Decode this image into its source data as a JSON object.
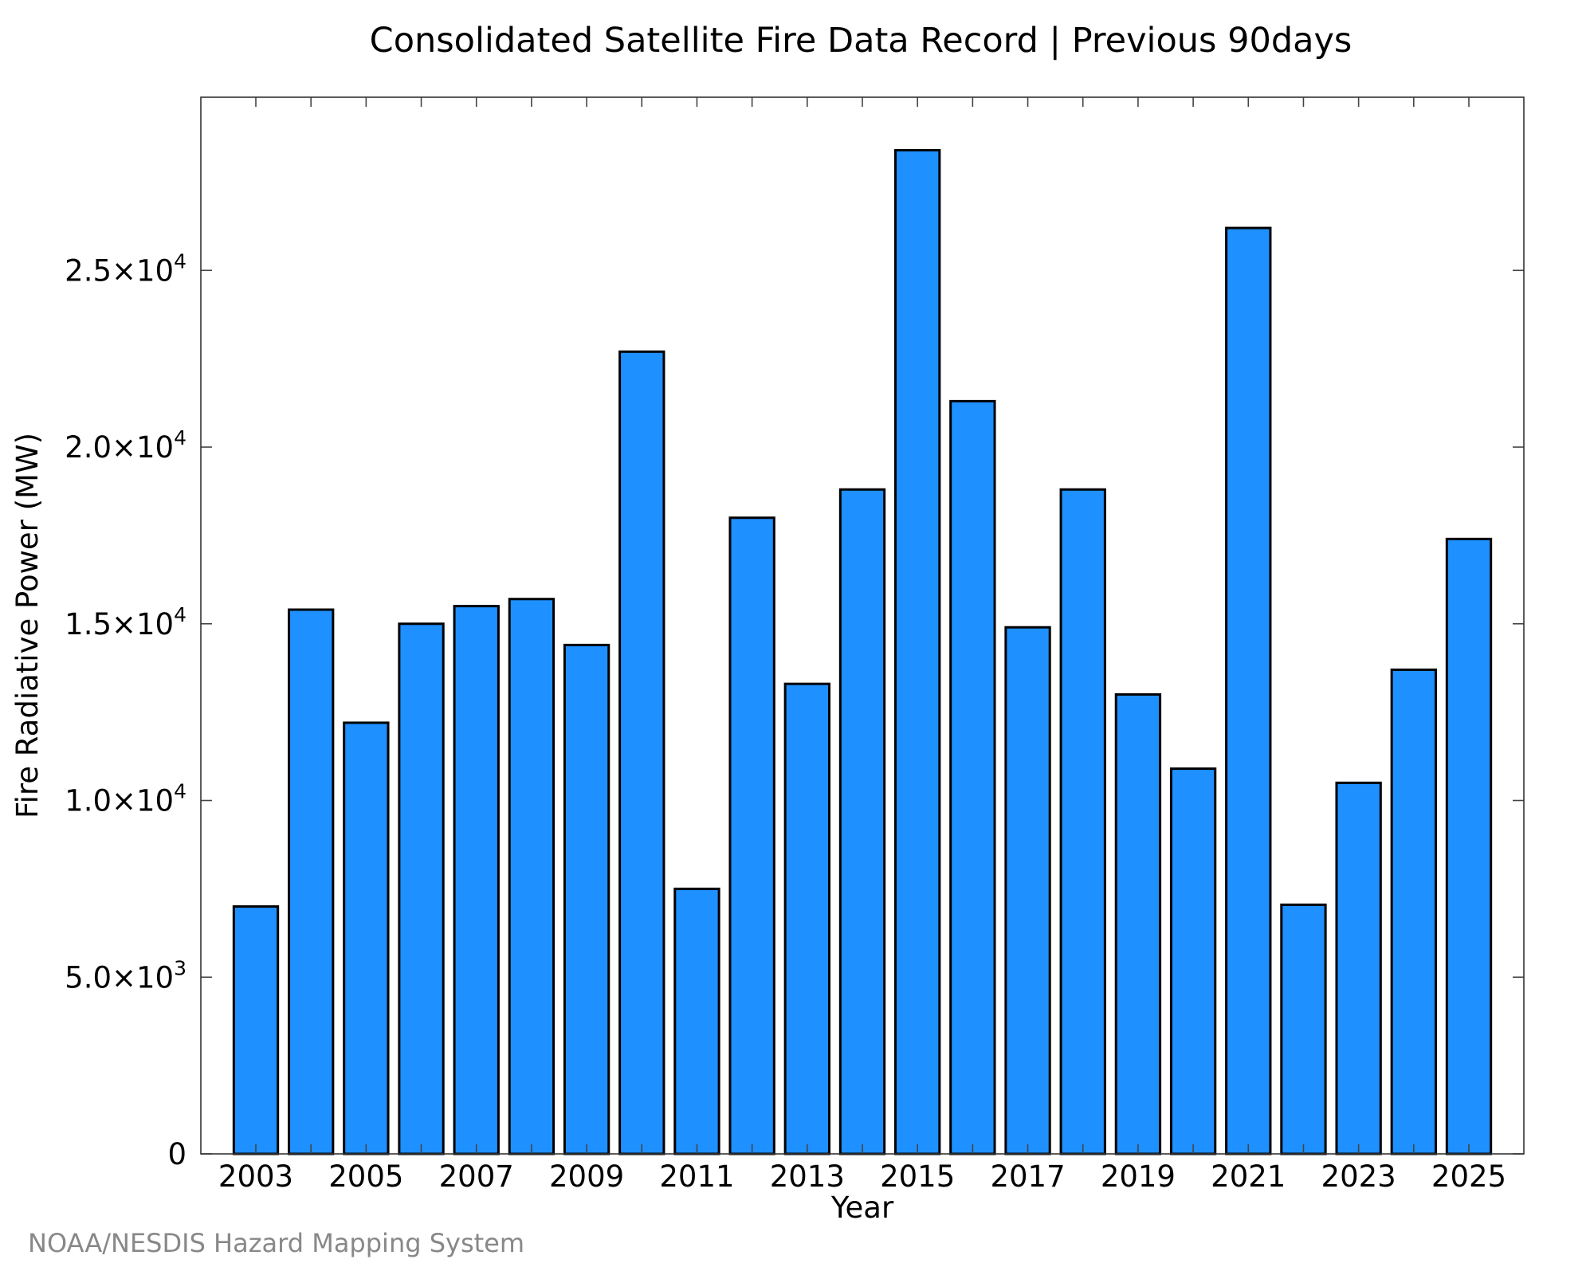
{
  "chart_data": {
    "type": "bar",
    "title": "Consolidated Satellite Fire Data Record | Previous 90days",
    "xlabel": "Year",
    "ylabel": "Fire Radiative Power (MW)",
    "categories": [
      "2003",
      "2004",
      "2005",
      "2006",
      "2007",
      "2008",
      "2009",
      "2010",
      "2011",
      "2012",
      "2013",
      "2014",
      "2015",
      "2016",
      "2017",
      "2018",
      "2019",
      "2020",
      "2021",
      "2022",
      "2023",
      "2024",
      "2025"
    ],
    "values": [
      7000,
      15400,
      12200,
      15000,
      15500,
      15700,
      14400,
      22700,
      7500,
      18000,
      13300,
      18800,
      28400,
      21300,
      14900,
      18800,
      13000,
      10900,
      26200,
      7050,
      10500,
      13700,
      17400
    ],
    "x_tick_labels": [
      {
        "category": "2003",
        "label": "2003"
      },
      {
        "category": "2005",
        "label": "2005"
      },
      {
        "category": "2007",
        "label": "2007"
      },
      {
        "category": "2009",
        "label": "2009"
      },
      {
        "category": "2011",
        "label": "2011"
      },
      {
        "category": "2013",
        "label": "2013"
      },
      {
        "category": "2015",
        "label": "2015"
      },
      {
        "category": "2017",
        "label": "2017"
      },
      {
        "category": "2019",
        "label": "2019"
      },
      {
        "category": "2021",
        "label": "2021"
      },
      {
        "category": "2023",
        "label": "2023"
      },
      {
        "category": "2025",
        "label": "2025"
      }
    ],
    "y_ticks": [
      {
        "value": 0,
        "mantissa": "0",
        "exponent": ""
      },
      {
        "value": 5000,
        "mantissa": "5.0×10",
        "exponent": "3"
      },
      {
        "value": 10000,
        "mantissa": "1.0×10",
        "exponent": "4"
      },
      {
        "value": 15000,
        "mantissa": "1.5×10",
        "exponent": "4"
      },
      {
        "value": 20000,
        "mantissa": "2.0×10",
        "exponent": "4"
      },
      {
        "value": 25000,
        "mantissa": "2.5×10",
        "exponent": "4"
      }
    ],
    "ylim": [
      0,
      29900
    ],
    "bar_color": "#1E90FF",
    "grid": false,
    "legend": "none"
  },
  "credit": "NOAA/NESDIS Hazard Mapping System"
}
